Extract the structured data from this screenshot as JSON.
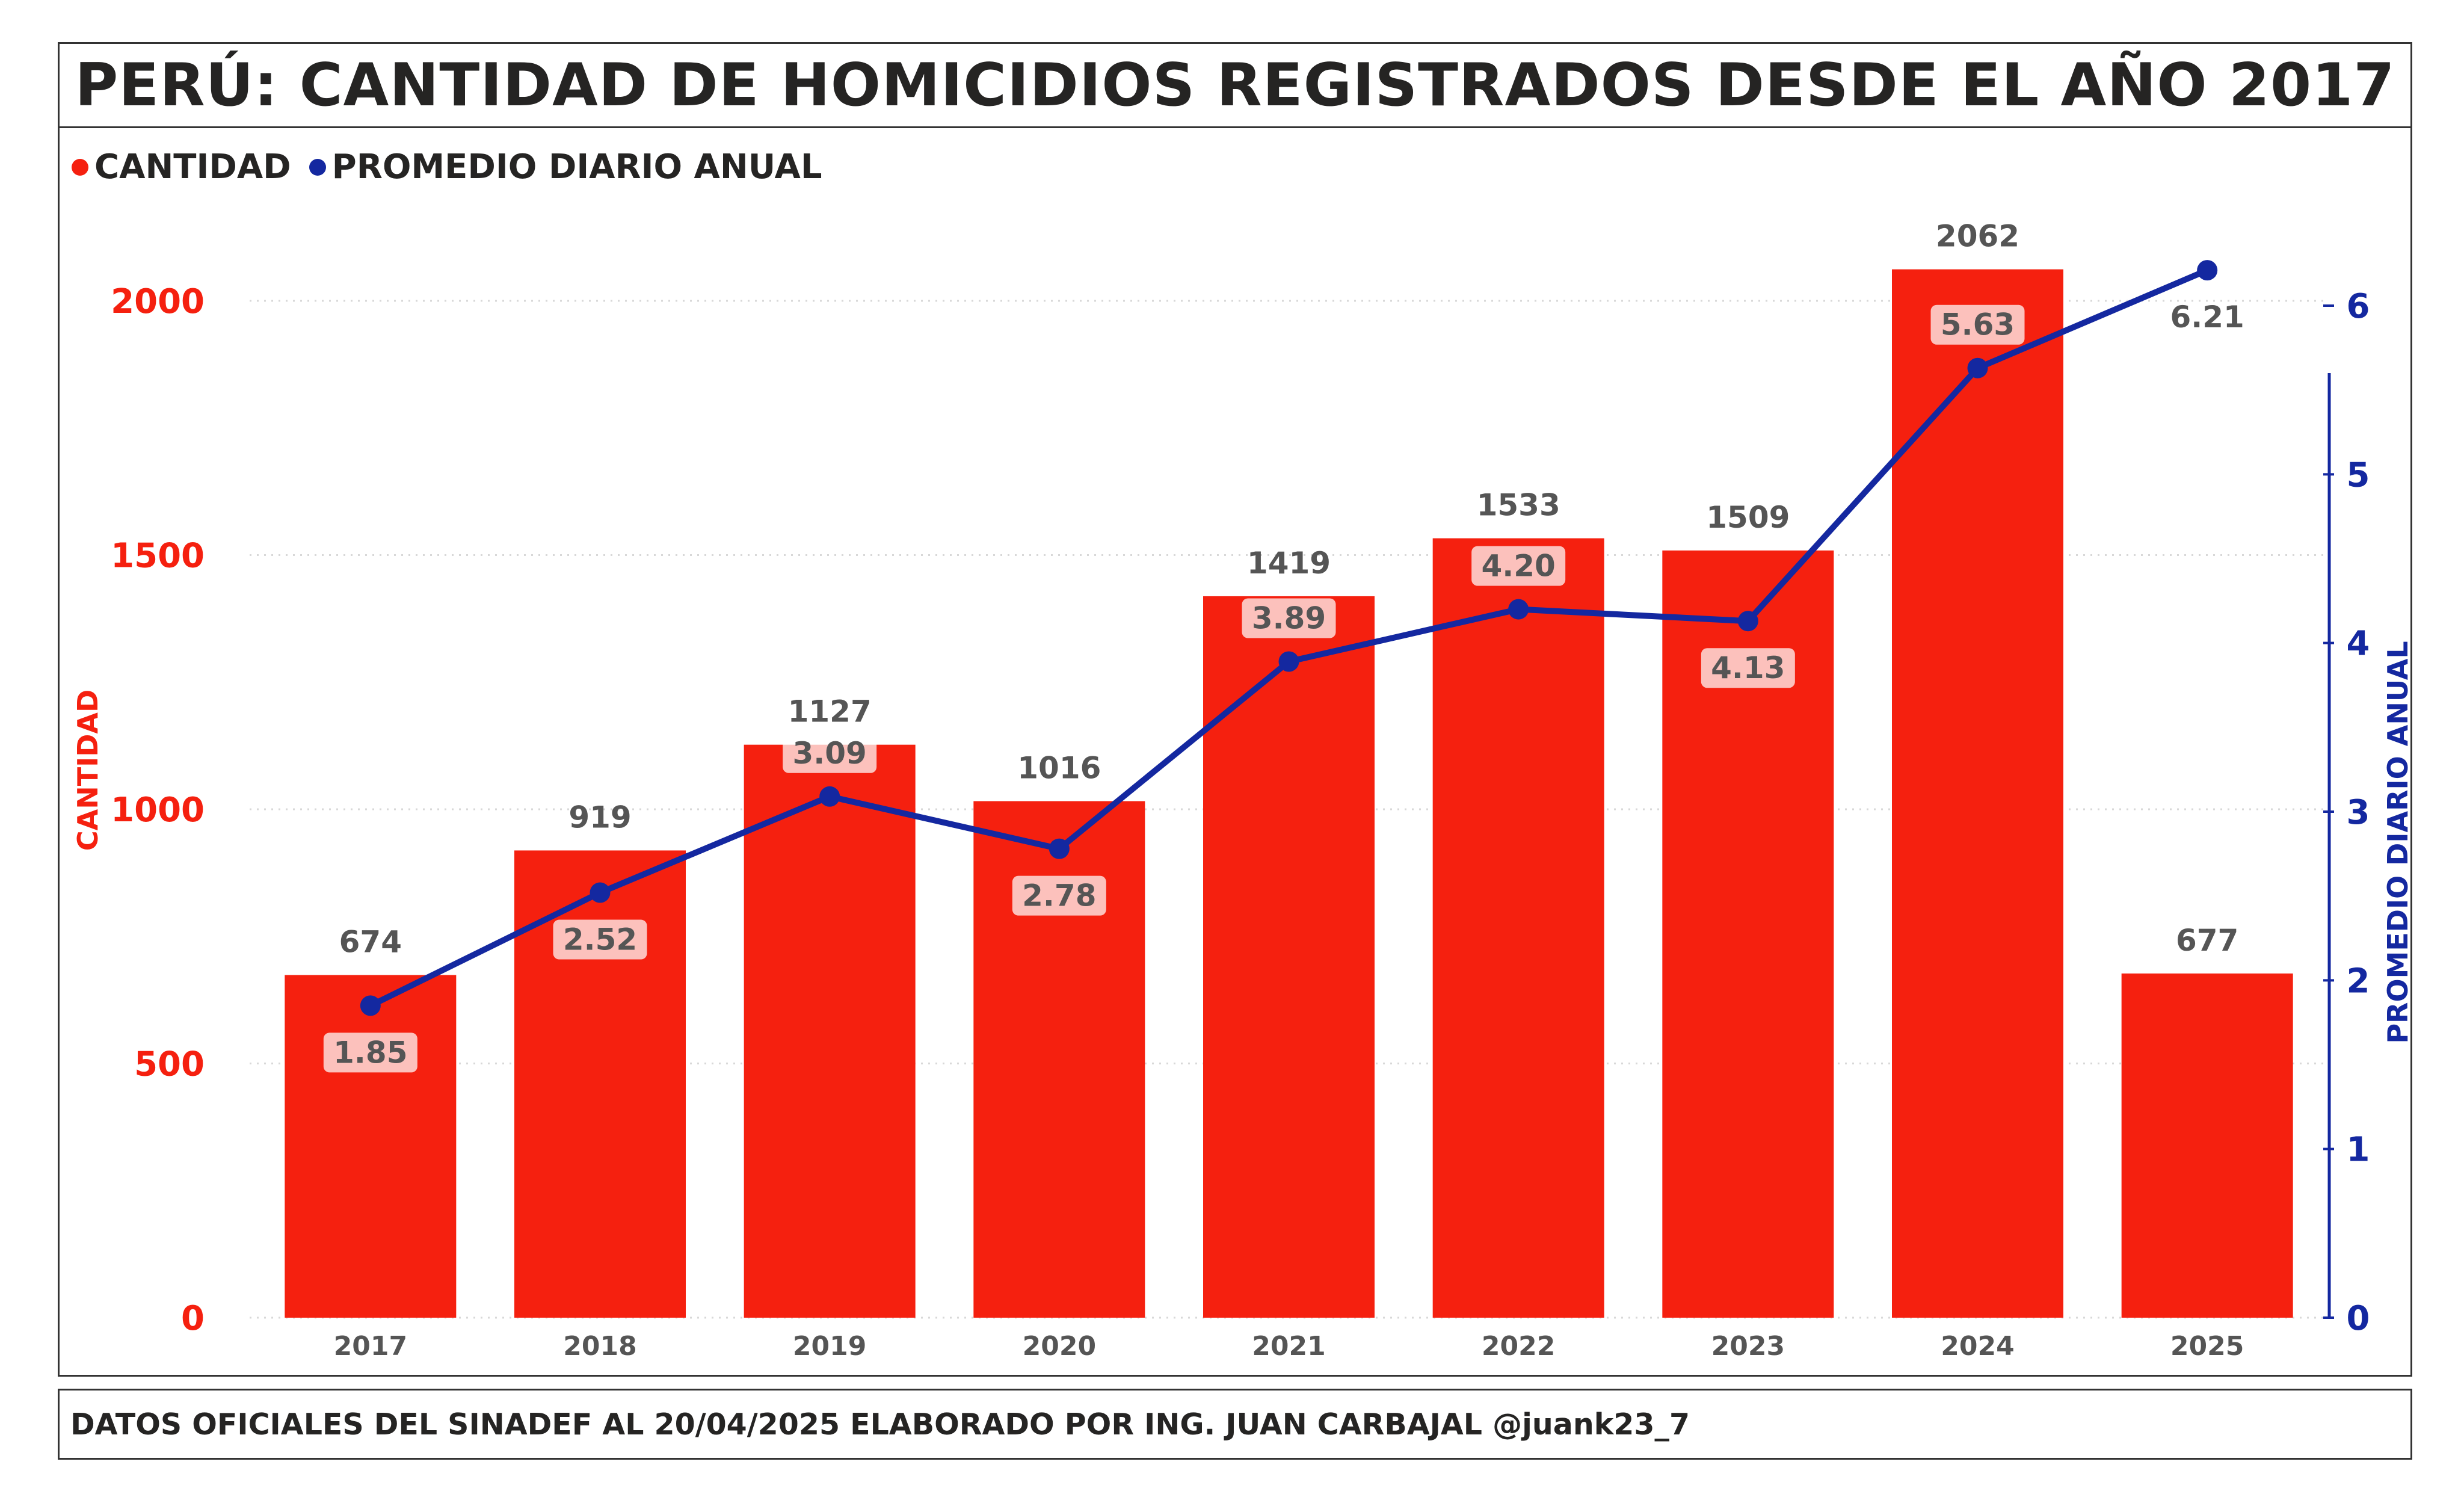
{
  "title": "PERÚ: CANTIDAD DE HOMICIDIOS REGISTRADOS DESDE EL AÑO 2017",
  "legend": [
    {
      "label": "CANTIDAD",
      "color": "#f5200f"
    },
    {
      "label": "PROMEDIO DIARIO ANUAL",
      "color": "#1428a0"
    }
  ],
  "footer": "DATOS OFICIALES DEL SINADEF AL 20/04/2025 ELABORADO POR ING. JUAN CARBAJAL @juank23_7",
  "chart_data": {
    "type": "bar",
    "categories": [
      "2017",
      "2018",
      "2019",
      "2020",
      "2021",
      "2022",
      "2023",
      "2024",
      "2025"
    ],
    "series": [
      {
        "name": "CANTIDAD",
        "type": "bar",
        "axis": "left",
        "color": "#f5200f",
        "values": [
          674,
          919,
          1127,
          1016,
          1419,
          1533,
          1509,
          2062,
          677
        ]
      },
      {
        "name": "PROMEDIO DIARIO ANUAL",
        "type": "line",
        "axis": "right",
        "color": "#1428a0",
        "values": [
          1.85,
          2.52,
          3.09,
          2.78,
          3.89,
          4.2,
          4.13,
          5.63,
          6.21
        ]
      }
    ],
    "line_value_labels": [
      "1.85",
      "2.52",
      "3.09",
      "2.78",
      "3.89",
      "4.20",
      "4.13",
      "5.63",
      "6.21"
    ],
    "ylabel": "CANTIDAD",
    "y2label": "PROMEDIO DIARIO ANUAL",
    "ylim": [
      0,
      2000
    ],
    "yticks": [
      0,
      500,
      1000,
      1500,
      2000
    ],
    "y2lim": [
      0,
      6
    ],
    "y2ticks": [
      0,
      1,
      2,
      3,
      4,
      5,
      6
    ],
    "grid": true,
    "legend_position": "top-left"
  }
}
